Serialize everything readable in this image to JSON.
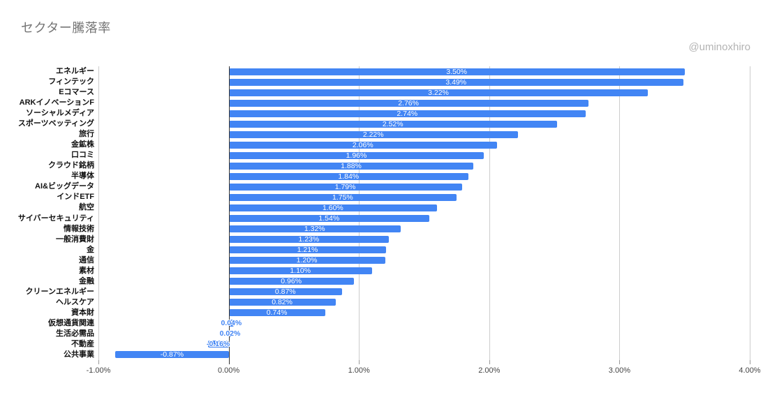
{
  "title": "セクター騰落率",
  "watermark": "@uminoxhiro",
  "chart_data": {
    "type": "bar",
    "orientation": "horizontal",
    "title": "セクター騰落率",
    "xlabel": "",
    "ylabel": "",
    "xlim": [
      -1,
      4
    ],
    "grid": true,
    "legend": "none",
    "bar_color": "#4285F4",
    "gridline_color": "#cccccc",
    "zero_line_color": "#333333",
    "categories": [
      "エネルギー",
      "フィンテック",
      "Eコマース",
      "ARKイノベーションF",
      "ソーシャルメディア",
      "スポーツベッティング",
      "旅行",
      "金鉱株",
      "口コミ",
      "クラウド銘柄",
      "半導体",
      "AI&ビッグデータ",
      "インドETF",
      "航空",
      "サイバーセキュリティ",
      "情報技術",
      "一般消費財",
      "金",
      "通信",
      "素材",
      "金融",
      "クリーンエネルギー",
      "ヘルスケア",
      "資本財",
      "仮想通貨関連",
      "生活必需品",
      "不動産",
      "公共事業"
    ],
    "values": [
      3.5,
      3.49,
      3.22,
      2.76,
      2.74,
      2.52,
      2.22,
      2.06,
      1.96,
      1.88,
      1.84,
      1.79,
      1.75,
      1.6,
      1.54,
      1.32,
      1.23,
      1.21,
      1.2,
      1.1,
      0.96,
      0.87,
      0.82,
      0.74,
      0.04,
      0.02,
      -0.16,
      -0.87
    ],
    "value_labels": [
      "3.50%",
      "3.49%",
      "3.22%",
      "2.76%",
      "2.74%",
      "2.52%",
      "2.22%",
      "2.06%",
      "1.96%",
      "1.88%",
      "1.84%",
      "1.79%",
      "1.75%",
      "1.60%",
      "1.54%",
      "1.32%",
      "1.23%",
      "1.21%",
      "1.20%",
      "1.10%",
      "0.96%",
      "0.87%",
      "0.82%",
      "0.74%",
      "0.04%",
      "0.02%",
      "-0.16%",
      "-0.87%"
    ],
    "x_tick_values": [
      -1,
      0,
      1,
      2,
      3,
      4
    ],
    "x_tick_labels": [
      "-1.00%",
      "0.00%",
      "1.00%",
      "2.00%",
      "3.00%",
      "4.00%"
    ]
  }
}
